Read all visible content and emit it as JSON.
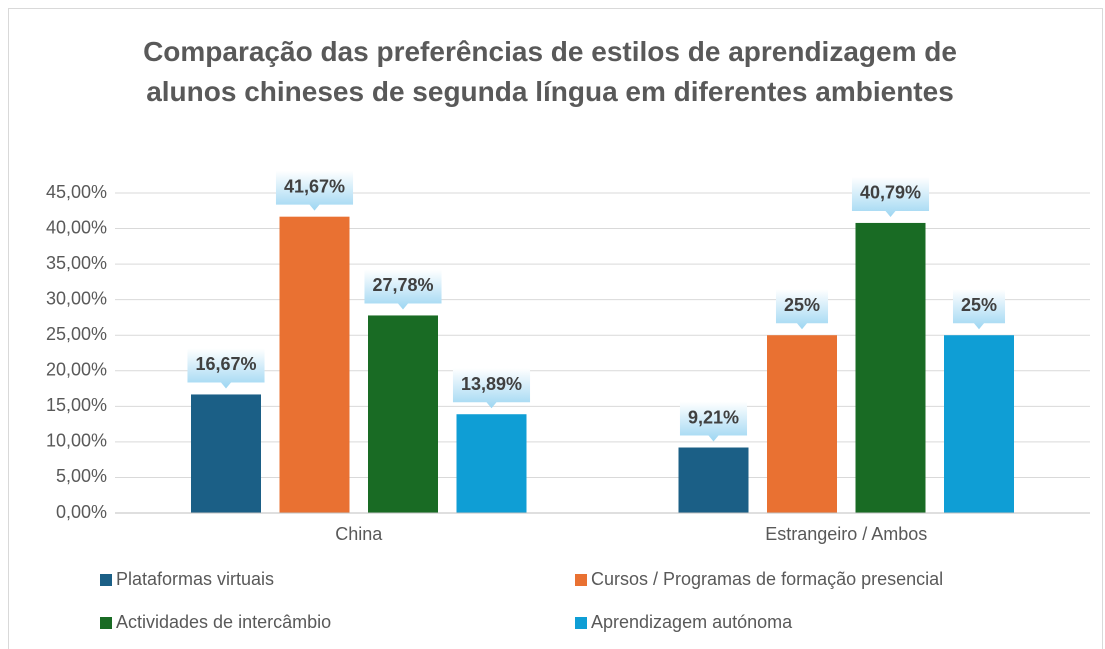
{
  "chart_data": {
    "type": "bar",
    "title": "Comparação das preferências de estilos de aprendizagem de alunos chineses de segunda língua em diferentes ambientes",
    "categories": [
      "China",
      "Estrangeiro / Ambos"
    ],
    "series": [
      {
        "name": "Plataformas virtuais",
        "color": "#1b5f86",
        "values": [
          16.67,
          9.21
        ],
        "value_labels": [
          "16,67%",
          "9,21%"
        ]
      },
      {
        "name": "Cursos / Programas de formação presencial",
        "color": "#e97132",
        "values": [
          41.67,
          25
        ],
        "value_labels": [
          "41,67%",
          "25%"
        ]
      },
      {
        "name": "Actividades de intercâmbio",
        "color": "#196b24",
        "values": [
          27.78,
          40.79
        ],
        "value_labels": [
          "27,78%",
          "40,79%"
        ]
      },
      {
        "name": "Aprendizagem autónoma",
        "color": "#0f9ed5",
        "values": [
          13.89,
          25
        ],
        "value_labels": [
          "13,89%",
          "25%"
        ]
      }
    ],
    "ylim": [
      0,
      45
    ],
    "yticks": [
      {
        "value": 0,
        "label": "0,00%"
      },
      {
        "value": 5,
        "label": "5,00%"
      },
      {
        "value": 10,
        "label": "10,00%"
      },
      {
        "value": 15,
        "label": "15,00%"
      },
      {
        "value": 20,
        "label": "20,00%"
      },
      {
        "value": 25,
        "label": "25,00%"
      },
      {
        "value": 30,
        "label": "30,00%"
      },
      {
        "value": 35,
        "label": "35,00%"
      },
      {
        "value": 40,
        "label": "40,00%"
      },
      {
        "value": 45,
        "label": "45,00%"
      }
    ],
    "grid": true
  }
}
